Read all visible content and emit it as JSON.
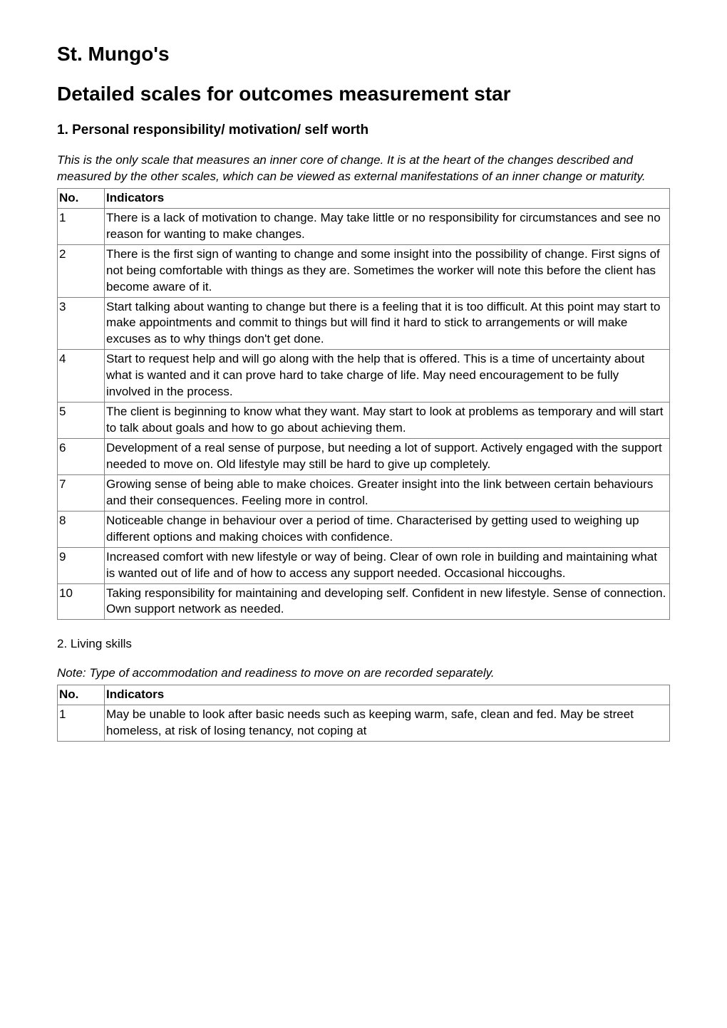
{
  "title_main": "St. Mungo's",
  "title_sub": "Detailed scales for outcomes measurement star",
  "section1": {
    "heading": "1. Personal responsibility/ motivation/ self worth",
    "intro": "This is the only scale that measures an inner core of change. It is at the heart of the changes described and measured by the other scales, which can be viewed as external manifestations of an inner change or maturity.",
    "col_no": "No.",
    "col_ind": "Indicators",
    "rows": [
      {
        "no": "1",
        "text": "There is a lack of motivation to change. May take little or no responsibility for circumstances and see no reason for wanting to make changes."
      },
      {
        "no": "2",
        "text": "There is the first sign of wanting to change and some insight into the possibility of change. First signs of not being comfortable with things as they are. Sometimes the worker will note this before the client has become aware of it."
      },
      {
        "no": "3",
        "text": "Start talking about wanting to change but there is a feeling that it is too difficult. At this point may start to make appointments and commit to things but will find it hard to stick to arrangements or will make excuses as to why things don't get done."
      },
      {
        "no": "4",
        "text": "Start to request help and will go along with the help that is offered. This is a time of uncertainty about what is wanted and it can prove hard to take charge of life. May need encouragement to be fully involved in the process."
      },
      {
        "no": "5",
        "text": "The client is beginning to know what they want. May start to look at problems as temporary and will start to talk about goals and how to go about achieving them."
      },
      {
        "no": "6",
        "text": "Development of a real sense of purpose, but needing a lot of support. Actively engaged with the support needed to move on. Old lifestyle may still be hard to give up completely."
      },
      {
        "no": "7",
        "text": "Growing sense of being able to make choices. Greater insight into the link between certain behaviours and their consequences. Feeling more in control."
      },
      {
        "no": "8",
        "text": "Noticeable change in behaviour over a period of time. Characterised by getting used to weighing up different options and making choices with confidence."
      },
      {
        "no": "9",
        "text": "Increased comfort with new lifestyle or way of being. Clear of own role in building and maintaining what is wanted out of life and of how to access any support needed. Occasional hiccoughs."
      },
      {
        "no": "10",
        "text": "Taking responsibility for maintaining and developing self. Confident in new lifestyle. Sense of connection. Own support network as needed."
      }
    ]
  },
  "section2": {
    "heading": "2. Living skills",
    "intro": "Note: Type of accommodation and readiness to move on are recorded separately.",
    "col_no": "No.",
    "col_ind": "Indicators",
    "rows": [
      {
        "no": "1",
        "text": "May be unable to look after basic needs such as keeping warm, safe, clean and fed. May be street homeless, at risk of losing tenancy, not coping at"
      }
    ]
  }
}
